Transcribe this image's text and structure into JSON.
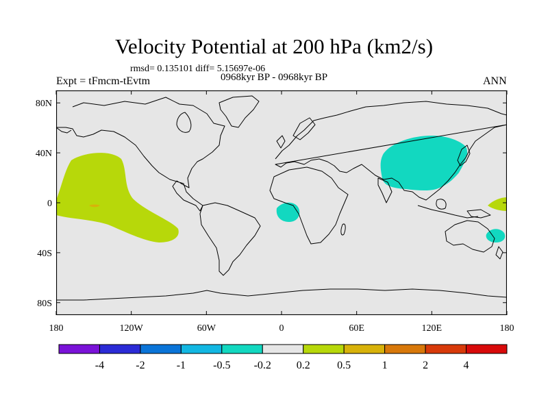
{
  "title": "Velocity Potential at 200 hPa (km2/s)",
  "stats": "rmsd= 0.135101 diff= 5.15697e-06",
  "subtitle": "0968kyr BP - 0968kyr BP",
  "left_label": "Expt = tFmcm-tEvtm",
  "right_label": "ANN",
  "background_color": "#e6e6e6",
  "y_ticks": [
    {
      "lat": 80,
      "label": "80N"
    },
    {
      "lat": 40,
      "label": "40N"
    },
    {
      "lat": 0,
      "label": "0"
    },
    {
      "lat": -40,
      "label": "40S"
    },
    {
      "lat": -80,
      "label": "80S"
    }
  ],
  "x_ticks": [
    {
      "lon": -180,
      "label": "180"
    },
    {
      "lon": -120,
      "label": "120W"
    },
    {
      "lon": -60,
      "label": "60W"
    },
    {
      "lon": 0,
      "label": "0"
    },
    {
      "lon": 60,
      "label": "60E"
    },
    {
      "lon": 120,
      "label": "120E"
    },
    {
      "lon": 180,
      "label": "180"
    }
  ],
  "colorbar": {
    "colors": [
      "#7a12d8",
      "#2b2bd6",
      "#0a74d8",
      "#12b7e2",
      "#12d8c0",
      "#e6e6e6",
      "#b7d80a",
      "#d8b20a",
      "#d8780a",
      "#d83a0a",
      "#d80a0a"
    ],
    "labels": [
      "-4",
      "-2",
      "-1",
      "-0.5",
      "-0.2",
      "0.2",
      "0.5",
      "1",
      "2",
      "4"
    ]
  },
  "regions": [
    {
      "name": "central-pacific-positive",
      "level": "0.2 to 0.5",
      "color": "#b7d80a"
    },
    {
      "name": "pacific-small-max",
      "level": "0.5 to 1",
      "color": "#d8b20a"
    },
    {
      "name": "asia-negative",
      "level": "-0.5 to -0.2",
      "color": "#12d8c0"
    },
    {
      "name": "southeast-atlantic-negative",
      "level": "-0.5 to -0.2",
      "color": "#12d8c0"
    },
    {
      "name": "tasman-negative",
      "level": "-0.5 to -0.2",
      "color": "#12d8c0"
    },
    {
      "name": "west-pacific-positive",
      "level": "0.2 to 0.5",
      "color": "#b7d80a"
    }
  ]
}
